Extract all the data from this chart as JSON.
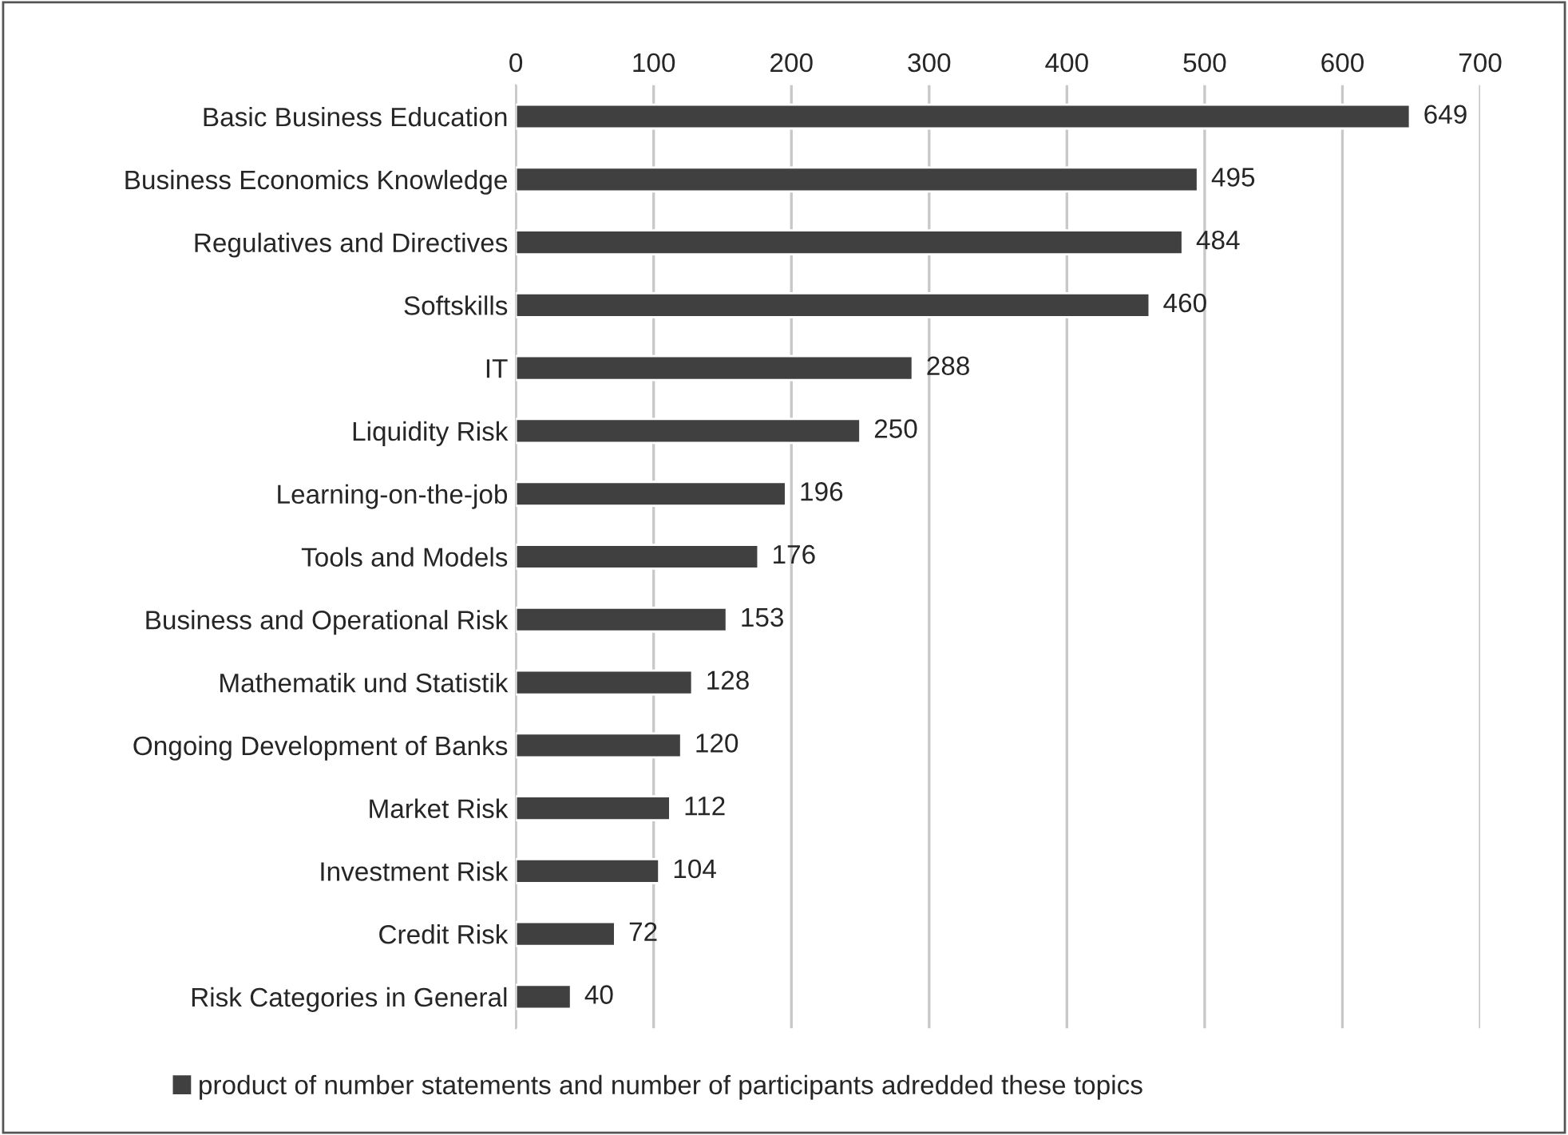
{
  "chart_data": {
    "type": "bar",
    "orientation": "horizontal",
    "categories": [
      "Basic Business Education",
      "Business Economics Knowledge",
      "Regulatives and Directives",
      "Softskills",
      "IT",
      "Liquidity Risk",
      "Learning-on-the-job",
      "Tools and Models",
      "Business and Operational Risk",
      "Mathematik und Statistik",
      "Ongoing Development of Banks",
      "Market Risk",
      "Investment Risk",
      "Credit Risk",
      "Risk Categories in General"
    ],
    "series": [
      {
        "name": "product of number statements and number of participants adredded these topics",
        "color": "#404040",
        "values": [
          649,
          495,
          484,
          460,
          288,
          250,
          196,
          176,
          153,
          128,
          120,
          112,
          104,
          72,
          40
        ]
      }
    ],
    "xlim": [
      0,
      700
    ],
    "xticks": [
      0,
      100,
      200,
      300,
      400,
      500,
      600,
      700
    ],
    "grid": "x",
    "legend": "bottom",
    "data_labels": true
  }
}
